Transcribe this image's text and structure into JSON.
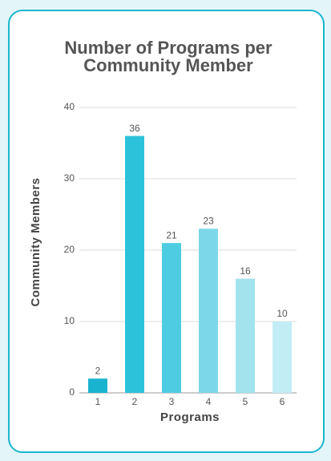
{
  "chart_data": {
    "type": "bar",
    "title": "Number of Programs per Community Member",
    "x_label": "Programs",
    "y_label": "Community Members",
    "categories": [
      "1",
      "2",
      "3",
      "4",
      "5",
      "6"
    ],
    "values": [
      2,
      36,
      21,
      23,
      16,
      10
    ],
    "colors": [
      "#1ab3cf",
      "#2cc2da",
      "#4ecde2",
      "#7cd8e8",
      "#a3e3ee",
      "#c3edf5"
    ],
    "ylim": [
      0,
      40
    ],
    "yticks": [
      0,
      10,
      20,
      30,
      40
    ],
    "grid": true
  }
}
